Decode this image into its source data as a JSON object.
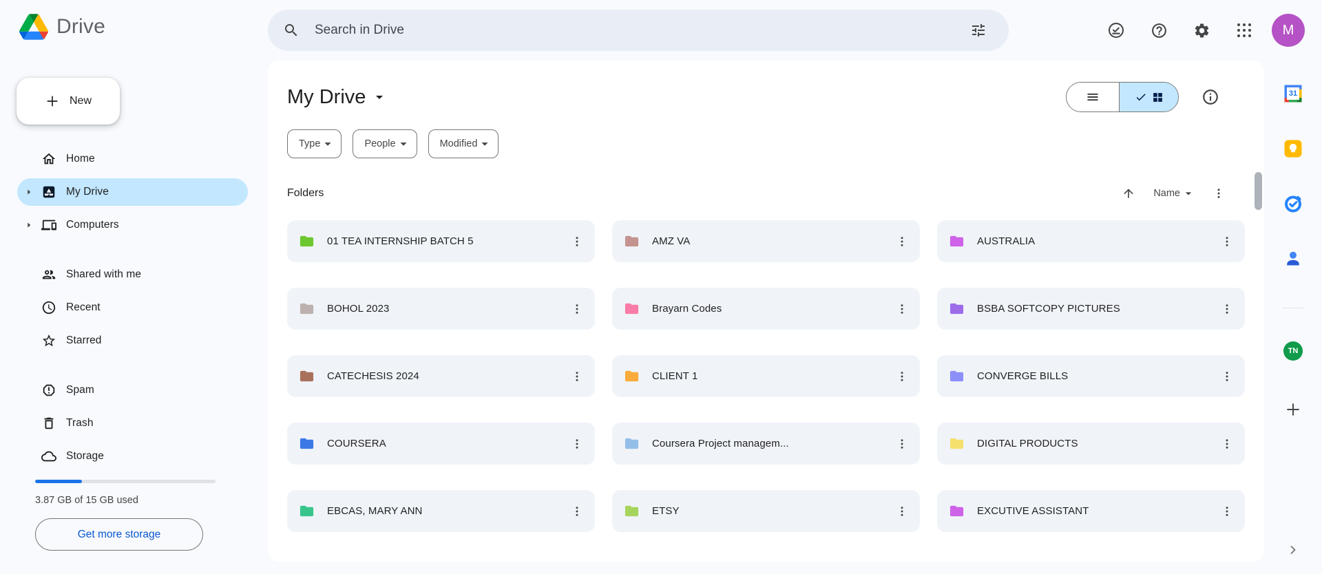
{
  "header": {
    "app_name": "Drive",
    "search_placeholder": "Search in Drive",
    "avatar_initial": "M"
  },
  "sidebar": {
    "new_label": "New",
    "items": [
      {
        "label": "Home"
      },
      {
        "label": "My Drive"
      },
      {
        "label": "Computers"
      },
      {
        "label": "Shared with me"
      },
      {
        "label": "Recent"
      },
      {
        "label": "Starred"
      },
      {
        "label": "Spam"
      },
      {
        "label": "Trash"
      },
      {
        "label": "Storage"
      }
    ],
    "storage_used_text": "3.87 GB of 15 GB used",
    "storage_percent": 25.8,
    "get_more_label": "Get more storage"
  },
  "main": {
    "title": "My Drive",
    "filters": [
      {
        "label": "Type"
      },
      {
        "label": "People"
      },
      {
        "label": "Modified"
      }
    ],
    "section_label": "Folders",
    "sort_label": "Name",
    "folders": [
      {
        "name": "01 TEA INTERNSHIP BATCH 5",
        "color": "#6DC830"
      },
      {
        "name": "AMZ VA",
        "color": "#C5938F"
      },
      {
        "name": "AUSTRALIA",
        "color": "#CE62E8"
      },
      {
        "name": "BOHOL 2023",
        "color": "#BCB1AE"
      },
      {
        "name": "Brayarn Codes",
        "color": "#F87CA7"
      },
      {
        "name": "BSBA SOFTCOPY PICTURES",
        "color": "#9D6DE8"
      },
      {
        "name": "CATECHESIS 2024",
        "color": "#A9715B"
      },
      {
        "name": "CLIENT 1",
        "color": "#F9AB3B"
      },
      {
        "name": "CONVERGE BILLS",
        "color": "#8C8FF8"
      },
      {
        "name": "COURSERA",
        "color": "#3C79E7"
      },
      {
        "name": "Coursera Project managem...",
        "color": "#94BFE8"
      },
      {
        "name": "DIGITAL PRODUCTS",
        "color": "#F5E06E"
      },
      {
        "name": "EBCAS, MARY ANN",
        "color": "#37C58B"
      },
      {
        "name": "ETSY",
        "color": "#A6D45C"
      },
      {
        "name": "EXCUTIVE ASSISTANT",
        "color": "#CE62E8"
      }
    ]
  },
  "side_panel": {
    "calendar_day": "31",
    "tn_avatar_initials": "TN"
  },
  "colors": {
    "accent_blue": "#0B57D0",
    "selected_nav": "#C2E7FF",
    "card_bg": "#F0F4F9",
    "avatar_bg": "#B552C5",
    "tn_avatar_bg": "#119B4B",
    "search_bg": "#E9EEF6",
    "page_bg": "#F8FAFD"
  }
}
